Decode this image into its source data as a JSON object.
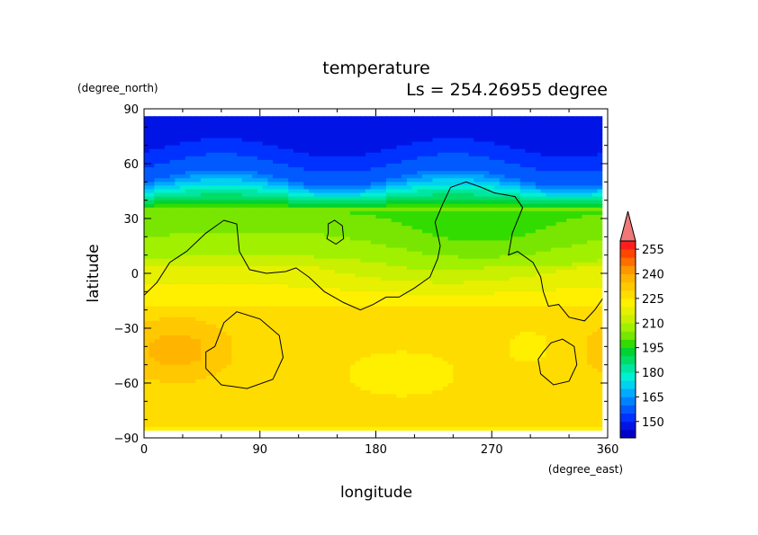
{
  "chart_data": {
    "type": "heatmap",
    "title": "temperature",
    "subtitle": "Ls = 254.26955 degree",
    "xlabel": "longitude",
    "ylabel": "latitude",
    "x_units": "(degree_east)",
    "y_units": "(degree_north)",
    "xlim": [
      0,
      360
    ],
    "ylim": [
      -90,
      90
    ],
    "x_ticks": [
      "0",
      "90",
      "180",
      "270",
      "360"
    ],
    "y_ticks": [
      "90",
      "60",
      "30",
      "0",
      "−30",
      "−60",
      "−90"
    ],
    "x_tick_values": [
      0,
      90,
      180,
      270,
      360
    ],
    "y_tick_values": [
      90,
      60,
      30,
      0,
      -30,
      -60,
      -90
    ],
    "data_extent": {
      "lon": [
        0,
        356
      ],
      "lat": [
        -86,
        86
      ]
    },
    "colorbar": {
      "labels": [
        "255",
        "240",
        "225",
        "210",
        "195",
        "180",
        "165",
        "150"
      ],
      "label_values": [
        255,
        240,
        225,
        210,
        195,
        180,
        165,
        150
      ],
      "levels": [
        140,
        145,
        150,
        155,
        160,
        165,
        170,
        175,
        180,
        185,
        190,
        195,
        200,
        205,
        210,
        215,
        220,
        225,
        230,
        235,
        240,
        245,
        250,
        255,
        260
      ],
      "colors": [
        "#0000c8",
        "#0014e6",
        "#0032ff",
        "#005aff",
        "#0082ff",
        "#00aaff",
        "#00d2f0",
        "#00f0d2",
        "#00e6a0",
        "#00dc64",
        "#00d232",
        "#32dc00",
        "#78e600",
        "#a0f000",
        "#c8f000",
        "#e6f000",
        "#fff000",
        "#ffdc00",
        "#ffc800",
        "#ffb400",
        "#ff9600",
        "#ff6e00",
        "#ff4600",
        "#ff1e1e"
      ],
      "extend_color": "#f07878"
    },
    "colors": {
      "south_warm_band": "#ffb400",
      "equator_band": "#ffdc00",
      "north_mid_band": "#a0f000",
      "polar_cold": "#0014e6",
      "basin_peak": "#ff9600",
      "topography_contour": "#000000"
    }
  }
}
